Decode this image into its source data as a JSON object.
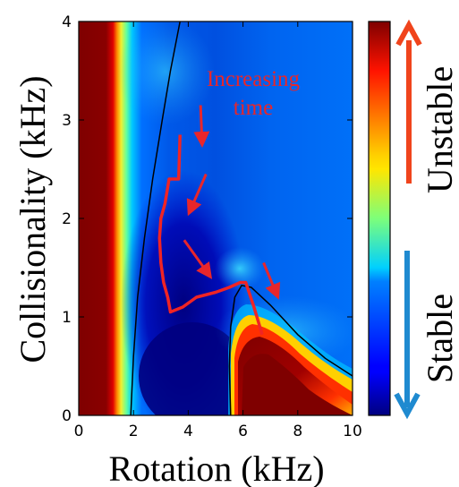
{
  "chart_data": {
    "type": "heatmap",
    "xlabel": "Rotation (kHz)",
    "ylabel": "Collisionality (kHz)",
    "xlim": [
      0,
      10
    ],
    "ylim": [
      0,
      4
    ],
    "xticks": [
      "0",
      "2",
      "4",
      "6",
      "8",
      "10"
    ],
    "yticks": [
      "0",
      "1",
      "2",
      "3",
      "4"
    ],
    "colormap": "jet",
    "colorbar": {
      "top_label": "Unstable",
      "bottom_label": "Stable",
      "top_arrow_color": "#f0441c",
      "bottom_arrow_color": "#1f8ad0"
    },
    "annotation": {
      "lines": [
        "Increasing",
        "time"
      ],
      "color": "#e8262b"
    },
    "trajectory": {
      "color": "#f02424",
      "points": [
        [
          3.7,
          2.85
        ],
        [
          3.65,
          2.4
        ],
        [
          3.3,
          2.4
        ],
        [
          3.15,
          2.15
        ],
        [
          3.0,
          2.0
        ],
        [
          2.95,
          1.8
        ],
        [
          3.0,
          1.55
        ],
        [
          3.1,
          1.35
        ],
        [
          3.25,
          1.2
        ],
        [
          3.35,
          1.05
        ],
        [
          3.8,
          1.1
        ],
        [
          4.3,
          1.2
        ],
        [
          5.0,
          1.25
        ],
        [
          5.5,
          1.3
        ],
        [
          5.9,
          1.35
        ],
        [
          6.1,
          1.35
        ],
        [
          6.4,
          1.1
        ],
        [
          6.7,
          0.82
        ]
      ]
    },
    "arrows": [
      {
        "from": [
          4.45,
          3.15
        ],
        "to": [
          4.5,
          2.8
        ]
      },
      {
        "from": [
          4.65,
          2.45
        ],
        "to": [
          4.1,
          2.1
        ]
      },
      {
        "from": [
          3.85,
          1.78
        ],
        "to": [
          4.7,
          1.45
        ]
      },
      {
        "from": [
          6.75,
          1.55
        ],
        "to": [
          7.2,
          1.25
        ]
      }
    ],
    "marginal_stability_contours": [
      {
        "points": [
          [
            1.9,
            0
          ],
          [
            2.0,
            0.6
          ],
          [
            2.15,
            1.2
          ],
          [
            2.4,
            1.8
          ],
          [
            2.7,
            2.4
          ],
          [
            3.05,
            3.0
          ],
          [
            3.35,
            3.5
          ],
          [
            3.7,
            4.0
          ]
        ]
      },
      {
        "points": [
          [
            5.55,
            0
          ],
          [
            5.5,
            0.5
          ],
          [
            5.55,
            0.9
          ],
          [
            5.7,
            1.2
          ],
          [
            5.95,
            1.32
          ],
          [
            6.3,
            1.3
          ],
          [
            7.0,
            1.12
          ],
          [
            8.0,
            0.82
          ],
          [
            9.0,
            0.58
          ],
          [
            10,
            0.4
          ]
        ]
      }
    ]
  }
}
